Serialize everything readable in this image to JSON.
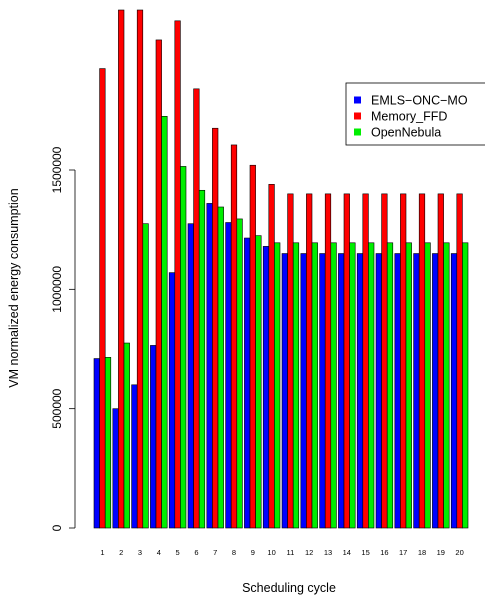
{
  "chart_data": {
    "type": "bar",
    "title": "",
    "xlabel": "Scheduling cycle",
    "ylabel": "VM normalized energy consumption",
    "categories": [
      "1",
      "2",
      "3",
      "4",
      "5",
      "6",
      "7",
      "8",
      "9",
      "10",
      "11",
      "12",
      "13",
      "14",
      "15",
      "16",
      "17",
      "18",
      "19",
      "20"
    ],
    "ylim": [
      0,
      2200000
    ],
    "y_ticks": [
      0,
      500000,
      1000000,
      1500000
    ],
    "y_tick_labels": [
      "0",
      "500000",
      "1000000",
      "1500000"
    ],
    "grid": false,
    "legend_position": "right",
    "series": [
      {
        "name": "EMLS−ONC−MO",
        "color": "#0000ff",
        "values": [
          710000,
          500000,
          600000,
          765000,
          1070000,
          1275000,
          1360000,
          1280000,
          1215000,
          1180000,
          1150000,
          1150000,
          1150000,
          1150000,
          1150000,
          1150000,
          1150000,
          1150000,
          1150000,
          1150000
        ]
      },
      {
        "name": "Memory_FFD",
        "color": "#ff0000",
        "values": [
          1925000,
          2210000,
          2210000,
          2045000,
          2125000,
          1840000,
          1675000,
          1605000,
          1520000,
          1440000,
          1400000,
          1400000,
          1400000,
          1400000,
          1400000,
          1400000,
          1400000,
          1400000,
          1400000,
          1400000
        ]
      },
      {
        "name": "OpenNebula",
        "color": "#00ee00",
        "values": [
          715000,
          775000,
          1275000,
          1725000,
          1515000,
          1415000,
          1345000,
          1295000,
          1225000,
          1195000,
          1195000,
          1195000,
          1195000,
          1195000,
          1195000,
          1195000,
          1195000,
          1195000,
          1195000,
          1195000
        ]
      }
    ]
  }
}
